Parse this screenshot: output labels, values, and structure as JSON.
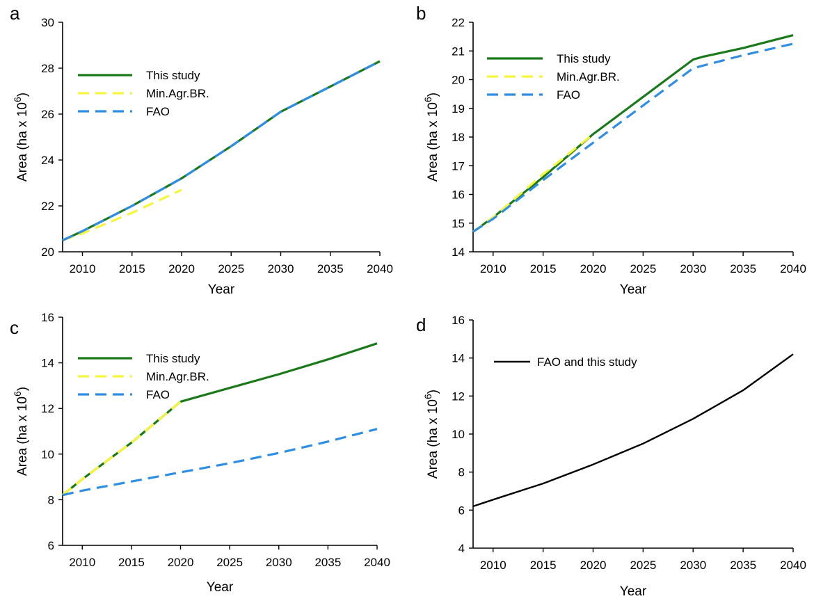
{
  "chart_data": [
    {
      "panel": "a",
      "type": "line",
      "xlabel": "Year",
      "ylabel": "Area (ha x 10",
      "ylabel_sup": "6",
      "ylabel_close": ")",
      "xlim": [
        2008,
        2040
      ],
      "ylim": [
        20,
        30
      ],
      "xticks": [
        2010,
        2015,
        2020,
        2025,
        2030,
        2035,
        2040
      ],
      "yticks": [
        20,
        22,
        24,
        26,
        28,
        30
      ],
      "legend_position": "top-left",
      "series": [
        {
          "name": "This study",
          "color": "#1a7a1a",
          "dash": "solid",
          "x": [
            2008,
            2010,
            2015,
            2020,
            2025,
            2030,
            2035,
            2040
          ],
          "y": [
            20.5,
            20.9,
            22.0,
            23.2,
            24.6,
            26.1,
            27.2,
            28.3
          ]
        },
        {
          "name": "Min.Agr.BR.",
          "color": "#f5f53c",
          "dash": "dashed",
          "x": [
            2008,
            2010,
            2015,
            2020
          ],
          "y": [
            20.5,
            20.8,
            21.7,
            22.7
          ]
        },
        {
          "name": "FAO",
          "color": "#2e8ee6",
          "dash": "dashed",
          "x": [
            2008,
            2010,
            2015,
            2020,
            2025,
            2030,
            2035,
            2040
          ],
          "y": [
            20.5,
            20.9,
            22.0,
            23.2,
            24.6,
            26.1,
            27.2,
            28.3
          ]
        }
      ]
    },
    {
      "panel": "b",
      "type": "line",
      "xlabel": "Year",
      "ylabel": "Area (ha x 10",
      "ylabel_sup": "6",
      "ylabel_close": ")",
      "xlim": [
        2008,
        2040
      ],
      "ylim": [
        14,
        22
      ],
      "xticks": [
        2010,
        2015,
        2020,
        2025,
        2030,
        2035,
        2040
      ],
      "yticks": [
        14,
        15,
        16,
        17,
        18,
        19,
        20,
        21,
        22
      ],
      "legend_position": "top-left",
      "series": [
        {
          "name": "This study",
          "color": "#1a7a1a",
          "dash": "solid",
          "x": [
            2008,
            2010,
            2015,
            2020,
            2025,
            2030,
            2031,
            2035,
            2040
          ],
          "y": [
            14.7,
            15.2,
            16.6,
            18.1,
            19.4,
            20.7,
            20.8,
            21.1,
            21.55
          ]
        },
        {
          "name": "Min.Agr.BR.",
          "color": "#f5f53c",
          "dash": "dashed",
          "x": [
            2008,
            2010,
            2015,
            2020
          ],
          "y": [
            14.7,
            15.2,
            16.7,
            18.1
          ]
        },
        {
          "name": "FAO",
          "color": "#2e8ee6",
          "dash": "dashed",
          "x": [
            2008,
            2010,
            2015,
            2020,
            2025,
            2030,
            2035,
            2040
          ],
          "y": [
            14.7,
            15.15,
            16.5,
            17.8,
            19.1,
            20.4,
            20.85,
            21.25
          ]
        }
      ]
    },
    {
      "panel": "c",
      "type": "line",
      "xlabel": "Year",
      "ylabel": "Area (ha x 10",
      "ylabel_sup": "6",
      "ylabel_close": ")",
      "xlim": [
        2008,
        2040
      ],
      "ylim": [
        6,
        16
      ],
      "xticks": [
        2010,
        2015,
        2020,
        2025,
        2030,
        2035,
        2040
      ],
      "yticks": [
        6,
        8,
        10,
        12,
        14,
        16
      ],
      "legend_position": "top-left",
      "series": [
        {
          "name": "This study",
          "color": "#1a7a1a",
          "dash": "solid",
          "x": [
            2008,
            2010,
            2015,
            2020,
            2025,
            2030,
            2035,
            2040
          ],
          "y": [
            8.2,
            8.9,
            10.5,
            12.3,
            12.9,
            13.5,
            14.15,
            14.85
          ]
        },
        {
          "name": "Min.Agr.BR.",
          "color": "#f5f53c",
          "dash": "dashed",
          "x": [
            2008,
            2010,
            2015,
            2020
          ],
          "y": [
            8.2,
            8.9,
            10.5,
            12.3
          ]
        },
        {
          "name": "FAO",
          "color": "#2e8ee6",
          "dash": "dashed",
          "x": [
            2008,
            2010,
            2015,
            2020,
            2025,
            2030,
            2035,
            2040
          ],
          "y": [
            8.2,
            8.4,
            8.8,
            9.2,
            9.6,
            10.05,
            10.55,
            11.1
          ]
        }
      ]
    },
    {
      "panel": "d",
      "type": "line",
      "xlabel": "Year",
      "ylabel": "Area (ha x 10",
      "ylabel_sup": "6",
      "ylabel_close": ")",
      "xlim": [
        2008,
        2040
      ],
      "ylim": [
        4,
        16
      ],
      "xticks": [
        2010,
        2015,
        2020,
        2025,
        2030,
        2035,
        2040
      ],
      "yticks": [
        4,
        6,
        8,
        10,
        12,
        14,
        16
      ],
      "legend_position": "top-left",
      "series": [
        {
          "name": "FAO and this study",
          "color": "#000000",
          "dash": "solid",
          "x": [
            2008,
            2010,
            2015,
            2020,
            2025,
            2030,
            2035,
            2040
          ],
          "y": [
            6.2,
            6.55,
            7.4,
            8.4,
            9.5,
            10.8,
            12.3,
            14.2
          ]
        }
      ]
    }
  ]
}
